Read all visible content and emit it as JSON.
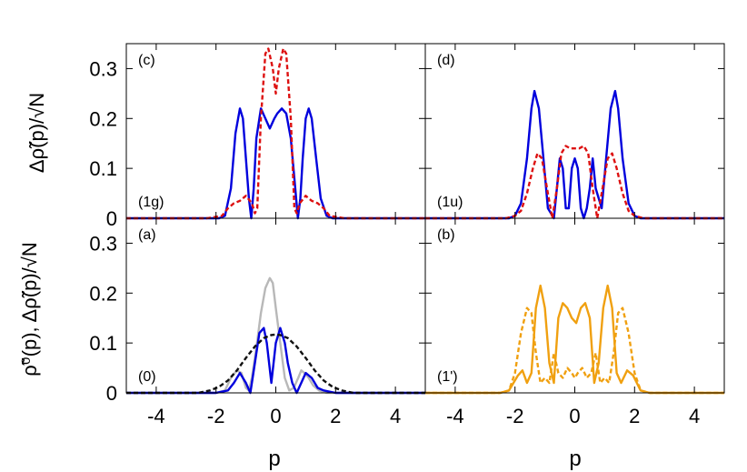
{
  "figure": {
    "x_axis_label": "p",
    "y_label_top": "Δρ̃(p)/√N",
    "y_label_bottom": "ρ̃⁰(p), Δρ̃(p)/√N"
  },
  "chart_data": [
    {
      "type": "line",
      "panel": "c",
      "panel_label": "(c)",
      "annotation": "(1g)",
      "xlim": [
        -5,
        5
      ],
      "ylim": [
        0,
        0.35
      ],
      "x_ticks": [
        -4,
        -2,
        0,
        2,
        4
      ],
      "y_ticks": [
        0,
        0.1,
        0.2,
        0.3
      ],
      "y_tick_labels": [
        "0",
        "0.1",
        "0.2",
        "0.3"
      ],
      "grid": false,
      "series": [
        {
          "color": "#0000dd",
          "style": "solid",
          "x": [
            -5,
            -1.9,
            -1.7,
            -1.5,
            -1.35,
            -1.2,
            -1.1,
            -1.0,
            -0.9,
            -0.82,
            -0.74,
            -0.65,
            -0.5,
            -0.35,
            -0.2,
            -0.05,
            0.05,
            0.2,
            0.35,
            0.5,
            0.65,
            0.74,
            0.82,
            0.9,
            1.0,
            1.1,
            1.2,
            1.35,
            1.5,
            1.7,
            1.9,
            5
          ],
          "y": [
            0,
            0,
            0.005,
            0.06,
            0.17,
            0.22,
            0.2,
            0.12,
            0.04,
            0,
            0.06,
            0.16,
            0.22,
            0.2,
            0.18,
            0.2,
            0.21,
            0.22,
            0.21,
            0.16,
            0.06,
            0,
            0.04,
            0.12,
            0.2,
            0.22,
            0.2,
            0.12,
            0.04,
            0.005,
            0,
            0
          ]
        },
        {
          "color": "#dd1111",
          "style": "dashed",
          "x": [
            -5,
            -2.3,
            -1.8,
            -1.6,
            -1.4,
            -1.2,
            -1.0,
            -0.8,
            -0.7,
            -0.62,
            -0.5,
            -0.35,
            -0.25,
            -0.1,
            0,
            0.1,
            0.25,
            0.35,
            0.5,
            0.62,
            0.7,
            0.8,
            1.0,
            1.2,
            1.4,
            1.6,
            1.8,
            2.3,
            5
          ],
          "y": [
            0,
            0,
            0.005,
            0.02,
            0.03,
            0.035,
            0.045,
            0.03,
            0.01,
            0.02,
            0.2,
            0.33,
            0.34,
            0.3,
            0.25,
            0.3,
            0.34,
            0.33,
            0.2,
            0.02,
            0.01,
            0.03,
            0.045,
            0.035,
            0.03,
            0.02,
            0.005,
            0,
            0
          ]
        }
      ]
    },
    {
      "type": "line",
      "panel": "d",
      "panel_label": "(d)",
      "annotation": "(1u)",
      "xlim": [
        -5,
        5
      ],
      "ylim": [
        0,
        0.35
      ],
      "x_ticks": [
        -4,
        -2,
        0,
        2,
        4
      ],
      "y_ticks": [
        0,
        0.1,
        0.2,
        0.3
      ],
      "grid": false,
      "series": [
        {
          "color": "#0000dd",
          "style": "solid",
          "x": [
            -5,
            -2.2,
            -2.0,
            -1.8,
            -1.6,
            -1.45,
            -1.35,
            -1.2,
            -1.05,
            -0.9,
            -0.7,
            -0.6,
            -0.5,
            -0.4,
            -0.3,
            -0.2,
            -0.1,
            0,
            0.1,
            0.2,
            0.3,
            0.4,
            0.5,
            0.6,
            0.7,
            0.9,
            1.05,
            1.2,
            1.35,
            1.45,
            1.6,
            1.8,
            2.0,
            2.2,
            5
          ],
          "y": [
            0,
            0,
            0.005,
            0.03,
            0.12,
            0.22,
            0.255,
            0.22,
            0.12,
            0.02,
            0,
            0.06,
            0.12,
            0.1,
            0.02,
            0.02,
            0.1,
            0.12,
            0.1,
            0.02,
            0,
            0.02,
            0.06,
            0.12,
            0.06,
            0.02,
            0.12,
            0.22,
            0.255,
            0.22,
            0.12,
            0.03,
            0.005,
            0,
            0
          ]
        },
        {
          "color": "#dd1111",
          "style": "dashed",
          "x": [
            -5,
            -2.3,
            -2.0,
            -1.8,
            -1.6,
            -1.4,
            -1.25,
            -1.1,
            -0.9,
            -0.75,
            -0.6,
            -0.45,
            -0.3,
            -0.15,
            0,
            0.15,
            0.3,
            0.45,
            0.6,
            0.75,
            0.9,
            1.1,
            1.25,
            1.4,
            1.6,
            1.8,
            2.0,
            2.3,
            5
          ],
          "y": [
            0,
            0,
            0.005,
            0.015,
            0.05,
            0.1,
            0.13,
            0.12,
            0.05,
            0,
            0.06,
            0.13,
            0.145,
            0.14,
            0.14,
            0.14,
            0.145,
            0.13,
            0.06,
            0,
            0.05,
            0.12,
            0.13,
            0.1,
            0.05,
            0.015,
            0.005,
            0,
            0
          ]
        }
      ]
    },
    {
      "type": "line",
      "panel": "a",
      "panel_label": "(a)",
      "annotation": "(0)",
      "xlim": [
        -5,
        5
      ],
      "ylim": [
        0,
        0.35
      ],
      "x_ticks": [
        -4,
        -2,
        0,
        2,
        4
      ],
      "x_tick_labels": [
        "-4",
        "-2",
        "0",
        "2",
        "4"
      ],
      "y_ticks": [
        0,
        0.1,
        0.2,
        0.3
      ],
      "y_tick_labels": [
        "0",
        "0.1",
        "0.2",
        "0.3"
      ],
      "grid": false,
      "series": [
        {
          "color": "#b8b8b8",
          "style": "solid",
          "x": [
            -5,
            -2.0,
            -1.7,
            -1.5,
            -1.3,
            -1.15,
            -1.0,
            -0.9,
            -0.8,
            -0.65,
            -0.5,
            -0.35,
            -0.2,
            -0.1,
            0,
            0.15,
            0.3,
            0.45,
            0.6,
            0.75,
            0.85,
            0.95,
            1.1,
            1.25,
            1.45,
            1.7,
            2.0,
            5
          ],
          "y": [
            0,
            0,
            0.005,
            0.03,
            0.045,
            0.04,
            0.01,
            0.005,
            0.03,
            0.09,
            0.16,
            0.21,
            0.23,
            0.22,
            0.17,
            0.1,
            0.03,
            0.005,
            0.01,
            0.03,
            0.045,
            0.04,
            0.03,
            0.015,
            0.005,
            0,
            0,
            0
          ]
        },
        {
          "color": "#0000dd",
          "style": "solid",
          "x": [
            -5,
            -2.0,
            -1.6,
            -1.4,
            -1.2,
            -1.0,
            -0.85,
            -0.7,
            -0.55,
            -0.4,
            -0.3,
            -0.15,
            0,
            0.15,
            0.3,
            0.4,
            0.55,
            0.7,
            0.85,
            1.0,
            1.2,
            1.4,
            1.6,
            2.0,
            5
          ],
          "y": [
            0,
            0,
            0.005,
            0.02,
            0.04,
            0.02,
            0,
            0.06,
            0.12,
            0.13,
            0.1,
            0.02,
            0.1,
            0.13,
            0.1,
            0.06,
            0.02,
            0,
            0.02,
            0.04,
            0.03,
            0.01,
            0.005,
            0,
            0
          ]
        },
        {
          "color": "#111111",
          "style": "dashed",
          "x": [
            -5,
            -2.6,
            -2.2,
            -1.9,
            -1.6,
            -1.3,
            -1.0,
            -0.7,
            -0.4,
            -0.15,
            0,
            0.15,
            0.4,
            0.7,
            1.0,
            1.3,
            1.6,
            1.9,
            2.2,
            2.6,
            5
          ],
          "y": [
            0,
            0,
            0.005,
            0.012,
            0.025,
            0.045,
            0.07,
            0.093,
            0.11,
            0.116,
            0.117,
            0.116,
            0.11,
            0.093,
            0.07,
            0.045,
            0.025,
            0.012,
            0.005,
            0,
            0
          ]
        }
      ]
    },
    {
      "type": "line",
      "panel": "b",
      "panel_label": "(b)",
      "annotation": "(1')",
      "xlim": [
        -5,
        5
      ],
      "ylim": [
        0,
        0.35
      ],
      "x_ticks": [
        -4,
        -2,
        0,
        2,
        4
      ],
      "x_tick_labels": [
        "-4",
        "-2",
        "0",
        "2",
        "4"
      ],
      "y_ticks": [
        0,
        0.1,
        0.2,
        0.3
      ],
      "grid": false,
      "series": [
        {
          "color": "#f0a010",
          "style": "solid",
          "x": [
            -5,
            -2.5,
            -2.2,
            -1.9,
            -1.75,
            -1.6,
            -1.45,
            -1.3,
            -1.15,
            -1.0,
            -0.85,
            -0.7,
            -0.55,
            -0.4,
            -0.25,
            -0.1,
            0.05,
            0.2,
            0.35,
            0.5,
            0.65,
            0.8,
            0.95,
            1.1,
            1.25,
            1.4,
            1.55,
            1.75,
            1.95,
            2.2,
            2.5,
            5
          ],
          "y": [
            0,
            0,
            0.005,
            0.035,
            0.045,
            0.02,
            0.04,
            0.17,
            0.215,
            0.17,
            0.06,
            0.02,
            0.15,
            0.18,
            0.17,
            0.15,
            0.14,
            0.17,
            0.18,
            0.15,
            0.02,
            0.06,
            0.17,
            0.215,
            0.17,
            0.04,
            0.02,
            0.045,
            0.035,
            0.005,
            0,
            0
          ]
        },
        {
          "color": "#f0a010",
          "style": "dashed",
          "x": [
            -5,
            -2.5,
            -2.2,
            -2.0,
            -1.8,
            -1.6,
            -1.45,
            -1.3,
            -1.15,
            -1.0,
            -0.85,
            -0.7,
            -0.55,
            -0.4,
            -0.25,
            -0.1,
            0,
            0.1,
            0.25,
            0.4,
            0.55,
            0.7,
            0.85,
            1.0,
            1.15,
            1.3,
            1.45,
            1.6,
            1.8,
            2.0,
            2.2,
            2.5,
            5
          ],
          "y": [
            0,
            0,
            0.005,
            0.04,
            0.12,
            0.17,
            0.16,
            0.08,
            0.02,
            0.03,
            0.02,
            0.08,
            0.04,
            0.03,
            0.05,
            0.04,
            0.03,
            0.04,
            0.05,
            0.03,
            0.04,
            0.08,
            0.02,
            0.03,
            0.02,
            0.08,
            0.16,
            0.17,
            0.12,
            0.04,
            0.005,
            0,
            0
          ]
        }
      ]
    }
  ]
}
